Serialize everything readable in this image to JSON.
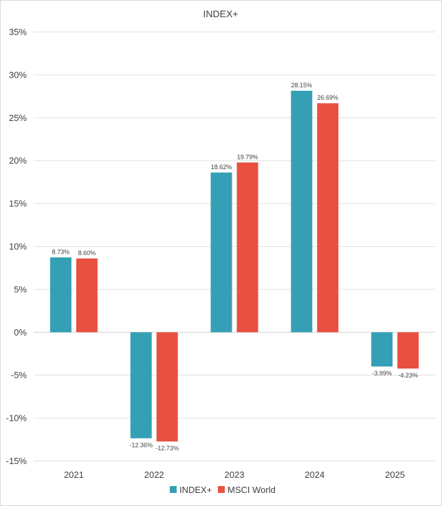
{
  "chart_data": {
    "type": "bar",
    "title": "INDEX+",
    "categories": [
      "2021",
      "2022",
      "2023",
      "2024",
      "2025"
    ],
    "series": [
      {
        "name": "INDEX+",
        "color": "#35a0b5",
        "values": [
          8.73,
          -12.36,
          18.62,
          28.15,
          -3.99
        ],
        "labels": [
          "8.73%",
          "-12.36%",
          "18.62%",
          "28.15%",
          "-3.99%"
        ]
      },
      {
        "name": "MSCI World",
        "color": "#e9503f",
        "values": [
          8.6,
          -12.73,
          19.79,
          26.69,
          -4.23
        ],
        "labels": [
          "8.60%",
          "-12.73%",
          "19.79%",
          "26.69%",
          "-4.23%"
        ]
      }
    ],
    "ylim": [
      -15,
      35
    ],
    "yticks": [
      35,
      30,
      25,
      20,
      15,
      10,
      5,
      0,
      -5,
      -10,
      -15
    ],
    "ytick_labels": [
      "35%",
      "30%",
      "25%",
      "20%",
      "15%",
      "10%",
      "5%",
      "0%",
      "-5%",
      "-10%",
      "-15%"
    ],
    "grid": true,
    "legend_position": "bottom"
  }
}
